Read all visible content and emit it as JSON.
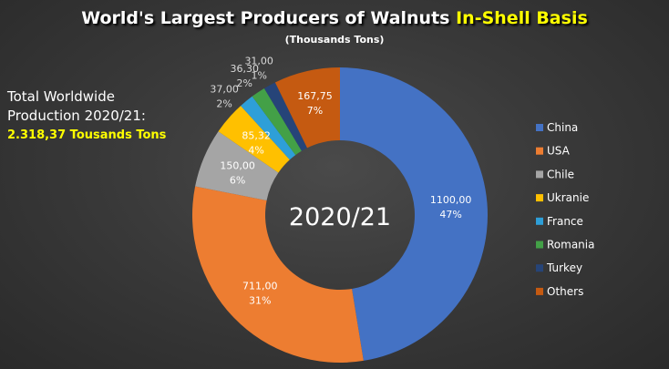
{
  "title_main": "World's Largest Producers of Walnuts",
  "title_highlight": "In-Shell Basis",
  "subtitle": "(Thousands Tons)",
  "total_label_line1": "Total Worldwide",
  "total_label_line2": "Production 2020/21:",
  "total_value": "2.318,37 Tousands Tons",
  "chart_data": {
    "type": "pie",
    "center_label": "2020/21",
    "series": [
      {
        "name": "China",
        "value": 1100.0,
        "value_label": "1100,00",
        "percent_label": "47%",
        "color": "#4472c4"
      },
      {
        "name": "USA",
        "value": 711.0,
        "value_label": "711,00",
        "percent_label": "31%",
        "color": "#ed7d31"
      },
      {
        "name": "Chile",
        "value": 150.0,
        "value_label": "150,00",
        "percent_label": "6%",
        "color": "#a5a5a5"
      },
      {
        "name": "Ukranie",
        "value": 85.32,
        "value_label": "85,32",
        "percent_label": "4%",
        "color": "#ffc000"
      },
      {
        "name": "France",
        "value": 37.0,
        "value_label": "37,00",
        "percent_label": "2%",
        "color": "#2e9fd8"
      },
      {
        "name": "Romania",
        "value": 36.3,
        "value_label": "36,30",
        "percent_label": "2%",
        "color": "#43a047"
      },
      {
        "name": "Turkey",
        "value": 31.0,
        "value_label": "31,00",
        "percent_label": "1%",
        "color": "#264478"
      },
      {
        "name": "Others",
        "value": 167.75,
        "value_label": "167,75",
        "percent_label": "7%",
        "color": "#c55a11"
      }
    ],
    "legend_position": "right"
  }
}
